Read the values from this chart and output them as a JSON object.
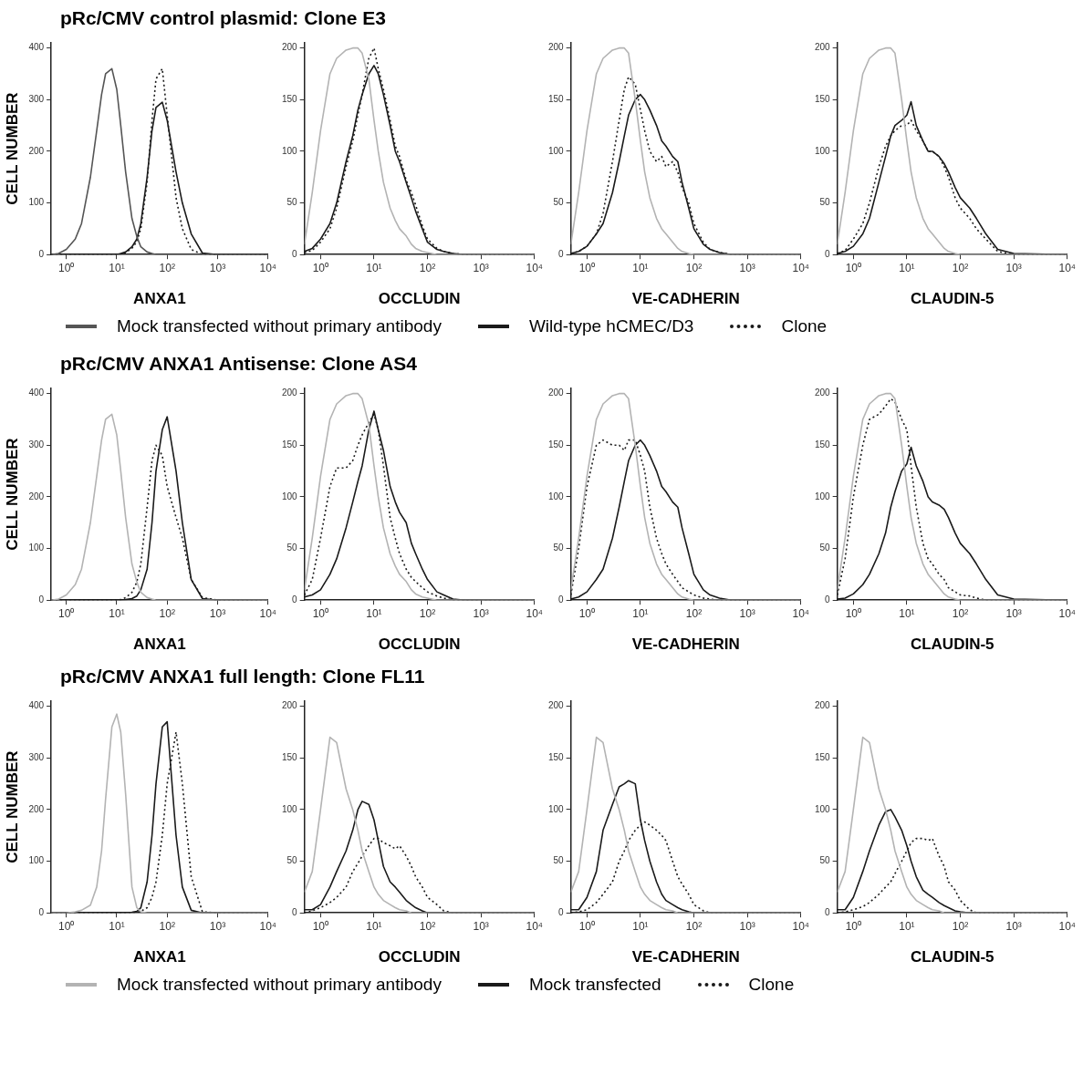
{
  "chart_data": [
    {
      "type": "line",
      "title": "pRc/CMV control plasmid: Clone E3",
      "xlabel": "ANXA1",
      "ylabel": "CELL NUMBER",
      "log": "x",
      "grid": false,
      "marker": "none",
      "legend": "bottom",
      "xlim": [
        0.5,
        10000
      ],
      "ylim": [
        0,
        410
      ],
      "yticks": [
        0,
        100,
        200,
        300,
        400
      ],
      "xticks": [
        {
          "value": 1,
          "label": "10⁰"
        },
        {
          "value": 10,
          "label": "10¹"
        },
        {
          "value": 100,
          "label": "10²"
        },
        {
          "value": 1000,
          "label": "10³"
        },
        {
          "value": 10000,
          "label": "10⁴"
        }
      ],
      "x": [
        0.5,
        0.7,
        1,
        1.5,
        2,
        3,
        4,
        5,
        6,
        8,
        10,
        12,
        15,
        20,
        25,
        30,
        40,
        50,
        60,
        80,
        100,
        150,
        200,
        300,
        500,
        1000,
        10000
      ],
      "series": [
        {
          "name": "Mock transfected without primary antibody",
          "color": "#555555",
          "line_style": "solid",
          "values": [
            0,
            2,
            10,
            30,
            60,
            150,
            240,
            310,
            350,
            360,
            320,
            250,
            160,
            70,
            35,
            15,
            5,
            2,
            0,
            0,
            0,
            0,
            0,
            0,
            0,
            0,
            0
          ]
        },
        {
          "name": "Wild-type hCMEC/D3",
          "color": "#1a1a1a",
          "line_style": "solid",
          "values": [
            0,
            0,
            0,
            0,
            0,
            0,
            0,
            0,
            0,
            0,
            0,
            2,
            5,
            15,
            30,
            60,
            150,
            240,
            285,
            295,
            260,
            160,
            100,
            40,
            3,
            0,
            0
          ]
        },
        {
          "name": "Clone",
          "color": "#1a1a1a",
          "line_style": "dotted",
          "values": [
            0,
            0,
            0,
            0,
            0,
            0,
            0,
            0,
            0,
            0,
            0,
            1,
            4,
            12,
            25,
            50,
            140,
            260,
            340,
            360,
            270,
            110,
            50,
            10,
            0,
            0,
            0
          ]
        }
      ]
    },
    {
      "type": "line",
      "xlabel": "OCCLUDIN",
      "log": "x",
      "grid": false,
      "marker": "none",
      "xlim": [
        0.5,
        10000
      ],
      "ylim": [
        0,
        205
      ],
      "yticks": [
        0,
        50,
        100,
        150,
        200
      ],
      "xticks": [
        {
          "value": 1,
          "label": "10⁰"
        },
        {
          "value": 10,
          "label": "10¹"
        },
        {
          "value": 100,
          "label": "10²"
        },
        {
          "value": 1000,
          "label": "10³"
        },
        {
          "value": 10000,
          "label": "10⁴"
        }
      ],
      "x": [
        0.5,
        0.7,
        1,
        1.5,
        2,
        3,
        4,
        5,
        6,
        8,
        10,
        12,
        15,
        20,
        25,
        30,
        40,
        50,
        60,
        80,
        100,
        150,
        200,
        300,
        500,
        1000,
        10000
      ],
      "series": [
        {
          "color": "#b3b3b3",
          "line_style": "solid",
          "values": [
            10,
            60,
            120,
            175,
            190,
            198,
            200,
            200,
            195,
            170,
            130,
            100,
            70,
            45,
            33,
            25,
            18,
            10,
            6,
            3,
            2,
            0,
            0,
            0,
            0,
            0,
            0
          ]
        },
        {
          "color": "#1a1a1a",
          "line_style": "solid",
          "values": [
            3,
            6,
            15,
            30,
            50,
            90,
            115,
            140,
            155,
            175,
            183,
            175,
            155,
            125,
            100,
            90,
            70,
            55,
            42,
            25,
            12,
            5,
            3,
            1,
            0,
            0,
            0
          ]
        },
        {
          "color": "#1a1a1a",
          "line_style": "dotted",
          "values": [
            2,
            4,
            12,
            25,
            45,
            85,
            110,
            135,
            155,
            190,
            200,
            180,
            160,
            130,
            105,
            95,
            72,
            60,
            48,
            28,
            15,
            6,
            3,
            1,
            0,
            0,
            0
          ]
        }
      ]
    },
    {
      "type": "line",
      "xlabel": "VE-CADHERIN",
      "log": "x",
      "grid": false,
      "marker": "none",
      "xlim": [
        0.5,
        10000
      ],
      "ylim": [
        0,
        205
      ],
      "yticks": [
        0,
        50,
        100,
        150,
        200
      ],
      "xticks": [
        {
          "value": 1,
          "label": "10⁰"
        },
        {
          "value": 10,
          "label": "10¹"
        },
        {
          "value": 100,
          "label": "10²"
        },
        {
          "value": 1000,
          "label": "10³"
        },
        {
          "value": 10000,
          "label": "10⁴"
        }
      ],
      "x": [
        0.5,
        0.7,
        1,
        1.5,
        2,
        3,
        4,
        5,
        6,
        8,
        10,
        12,
        15,
        20,
        25,
        30,
        40,
        50,
        60,
        80,
        100,
        150,
        200,
        300,
        500,
        1000,
        10000
      ],
      "series": [
        {
          "color": "#b3b3b3",
          "line_style": "solid",
          "values": [
            10,
            60,
            120,
            175,
            190,
            198,
            200,
            200,
            195,
            150,
            110,
            80,
            55,
            35,
            25,
            20,
            12,
            6,
            3,
            1,
            0,
            0,
            0,
            0,
            0,
            0,
            0
          ]
        },
        {
          "color": "#1a1a1a",
          "line_style": "solid",
          "values": [
            1,
            3,
            8,
            20,
            30,
            60,
            90,
            115,
            135,
            150,
            155,
            150,
            140,
            125,
            110,
            105,
            95,
            90,
            70,
            45,
            25,
            10,
            5,
            2,
            0,
            0,
            0
          ]
        },
        {
          "color": "#1a1a1a",
          "line_style": "dotted",
          "values": [
            1,
            3,
            8,
            20,
            40,
            90,
            130,
            160,
            172,
            165,
            140,
            120,
            100,
            90,
            95,
            85,
            90,
            80,
            65,
            50,
            30,
            12,
            5,
            2,
            0,
            0,
            0
          ]
        }
      ]
    },
    {
      "type": "line",
      "xlabel": "CLAUDIN-5",
      "log": "x",
      "grid": false,
      "marker": "none",
      "xlim": [
        0.5,
        10000
      ],
      "ylim": [
        0,
        205
      ],
      "yticks": [
        0,
        50,
        100,
        150,
        200
      ],
      "xticks": [
        {
          "value": 1,
          "label": "10⁰"
        },
        {
          "value": 10,
          "label": "10¹"
        },
        {
          "value": 100,
          "label": "10²"
        },
        {
          "value": 1000,
          "label": "10³"
        },
        {
          "value": 10000,
          "label": "10⁴"
        }
      ],
      "x": [
        0.5,
        0.7,
        1,
        1.5,
        2,
        3,
        4,
        5,
        6,
        8,
        10,
        12,
        15,
        20,
        25,
        30,
        40,
        50,
        60,
        80,
        100,
        150,
        200,
        300,
        500,
        1000,
        10000
      ],
      "series": [
        {
          "color": "#b3b3b3",
          "line_style": "solid",
          "values": [
            10,
            60,
            120,
            175,
            190,
            198,
            200,
            200,
            195,
            150,
            110,
            80,
            55,
            35,
            25,
            20,
            12,
            6,
            3,
            1,
            0,
            0,
            0,
            0,
            0,
            0,
            0
          ]
        },
        {
          "color": "#1a1a1a",
          "line_style": "solid",
          "values": [
            1,
            3,
            8,
            20,
            35,
            70,
            95,
            115,
            125,
            130,
            135,
            148,
            125,
            110,
            100,
            100,
            95,
            88,
            80,
            65,
            55,
            45,
            35,
            20,
            5,
            1,
            0
          ]
        },
        {
          "color": "#1a1a1a",
          "line_style": "dotted",
          "values": [
            1,
            4,
            15,
            30,
            50,
            85,
            105,
            115,
            120,
            125,
            125,
            130,
            120,
            110,
            100,
            100,
            95,
            85,
            75,
            55,
            45,
            35,
            25,
            15,
            3,
            0,
            0
          ]
        }
      ]
    },
    {
      "type": "line",
      "title": "pRc/CMV ANXA1 Antisense: Clone AS4",
      "xlabel": "ANXA1",
      "ylabel": "CELL NUMBER",
      "log": "x",
      "grid": false,
      "marker": "none",
      "xlim": [
        0.5,
        10000
      ],
      "ylim": [
        0,
        410
      ],
      "yticks": [
        0,
        100,
        200,
        300,
        400
      ],
      "xticks": [
        {
          "value": 1,
          "label": "10⁰"
        },
        {
          "value": 10,
          "label": "10¹"
        },
        {
          "value": 100,
          "label": "10²"
        },
        {
          "value": 1000,
          "label": "10³"
        },
        {
          "value": 10000,
          "label": "10⁴"
        }
      ],
      "x": [
        0.5,
        0.7,
        1,
        1.5,
        2,
        3,
        4,
        5,
        6,
        8,
        10,
        12,
        15,
        20,
        25,
        30,
        40,
        50,
        60,
        80,
        100,
        150,
        200,
        300,
        500,
        1000,
        10000
      ],
      "series": [
        {
          "color": "#b3b3b3",
          "line_style": "solid",
          "values": [
            0,
            2,
            10,
            30,
            60,
            150,
            240,
            310,
            350,
            360,
            320,
            250,
            160,
            70,
            35,
            15,
            5,
            2,
            0,
            0,
            0,
            0,
            0,
            0,
            0,
            0,
            0
          ]
        },
        {
          "color": "#1a1a1a",
          "line_style": "solid",
          "values": [
            0,
            0,
            0,
            0,
            0,
            0,
            0,
            0,
            0,
            0,
            0,
            0,
            1,
            3,
            8,
            20,
            60,
            150,
            250,
            330,
            355,
            250,
            150,
            40,
            3,
            0,
            0
          ]
        },
        {
          "color": "#1a1a1a",
          "line_style": "dotted",
          "values": [
            0,
            0,
            0,
            0,
            0,
            0,
            0,
            0,
            0,
            0,
            0,
            1,
            5,
            15,
            35,
            70,
            180,
            270,
            300,
            280,
            220,
            160,
            120,
            40,
            5,
            0,
            0
          ]
        }
      ]
    },
    {
      "type": "line",
      "xlabel": "OCCLUDIN",
      "log": "x",
      "grid": false,
      "marker": "none",
      "xlim": [
        0.5,
        10000
      ],
      "ylim": [
        0,
        205
      ],
      "yticks": [
        0,
        50,
        100,
        150,
        200
      ],
      "xticks": [
        {
          "value": 1,
          "label": "10⁰"
        },
        {
          "value": 10,
          "label": "10¹"
        },
        {
          "value": 100,
          "label": "10²"
        },
        {
          "value": 1000,
          "label": "10³"
        },
        {
          "value": 10000,
          "label": "10⁴"
        }
      ],
      "x": [
        0.5,
        0.7,
        1,
        1.5,
        2,
        3,
        4,
        5,
        6,
        8,
        10,
        12,
        15,
        20,
        25,
        30,
        40,
        50,
        60,
        80,
        100,
        150,
        200,
        300,
        500,
        1000,
        10000
      ],
      "series": [
        {
          "color": "#b3b3b3",
          "line_style": "solid",
          "values": [
            10,
            60,
            120,
            175,
            190,
            198,
            200,
            200,
            195,
            170,
            130,
            100,
            70,
            45,
            33,
            25,
            18,
            10,
            6,
            3,
            2,
            0,
            0,
            0,
            0,
            0,
            0
          ]
        },
        {
          "color": "#1a1a1a",
          "line_style": "solid",
          "values": [
            3,
            5,
            10,
            25,
            40,
            70,
            95,
            115,
            130,
            165,
            183,
            165,
            145,
            110,
            95,
            85,
            75,
            55,
            45,
            30,
            20,
            8,
            5,
            1,
            0,
            0,
            0
          ]
        },
        {
          "color": "#1a1a1a",
          "line_style": "dotted",
          "values": [
            5,
            20,
            60,
            110,
            128,
            128,
            135,
            150,
            160,
            172,
            180,
            165,
            130,
            80,
            60,
            45,
            30,
            22,
            18,
            12,
            8,
            4,
            2,
            0,
            0,
            0,
            0
          ]
        }
      ]
    },
    {
      "type": "line",
      "xlabel": "VE-CADHERIN",
      "log": "x",
      "grid": false,
      "marker": "none",
      "xlim": [
        0.5,
        10000
      ],
      "ylim": [
        0,
        205
      ],
      "yticks": [
        0,
        50,
        100,
        150,
        200
      ],
      "xticks": [
        {
          "value": 1,
          "label": "10⁰"
        },
        {
          "value": 10,
          "label": "10¹"
        },
        {
          "value": 100,
          "label": "10²"
        },
        {
          "value": 1000,
          "label": "10³"
        },
        {
          "value": 10000,
          "label": "10⁴"
        }
      ],
      "x": [
        0.5,
        0.7,
        1,
        1.5,
        2,
        3,
        4,
        5,
        6,
        8,
        10,
        12,
        15,
        20,
        25,
        30,
        40,
        50,
        60,
        80,
        100,
        150,
        200,
        300,
        500,
        1000,
        10000
      ],
      "series": [
        {
          "color": "#b3b3b3",
          "line_style": "solid",
          "values": [
            10,
            60,
            120,
            175,
            190,
            198,
            200,
            200,
            195,
            150,
            110,
            80,
            55,
            35,
            25,
            20,
            12,
            6,
            3,
            1,
            0,
            0,
            0,
            0,
            0,
            0,
            0
          ]
        },
        {
          "color": "#1a1a1a",
          "line_style": "solid",
          "values": [
            1,
            3,
            8,
            20,
            30,
            60,
            90,
            115,
            135,
            150,
            155,
            150,
            140,
            125,
            110,
            105,
            95,
            90,
            70,
            45,
            25,
            10,
            5,
            2,
            0,
            0,
            0
          ]
        },
        {
          "color": "#1a1a1a",
          "line_style": "dotted",
          "values": [
            5,
            50,
            110,
            150,
            155,
            150,
            150,
            145,
            155,
            155,
            140,
            125,
            90,
            60,
            45,
            35,
            25,
            18,
            12,
            8,
            5,
            2,
            1,
            0,
            0,
            0,
            0
          ]
        }
      ]
    },
    {
      "type": "line",
      "xlabel": "CLAUDIN-5",
      "log": "x",
      "grid": false,
      "marker": "none",
      "xlim": [
        0.5,
        10000
      ],
      "ylim": [
        0,
        205
      ],
      "yticks": [
        0,
        50,
        100,
        150,
        200
      ],
      "xticks": [
        {
          "value": 1,
          "label": "10⁰"
        },
        {
          "value": 10,
          "label": "10¹"
        },
        {
          "value": 100,
          "label": "10²"
        },
        {
          "value": 1000,
          "label": "10³"
        },
        {
          "value": 10000,
          "label": "10⁴"
        }
      ],
      "x": [
        0.5,
        0.7,
        1,
        1.5,
        2,
        3,
        4,
        5,
        6,
        8,
        10,
        12,
        15,
        20,
        25,
        30,
        40,
        50,
        60,
        80,
        100,
        150,
        200,
        300,
        500,
        1000,
        10000
      ],
      "series": [
        {
          "color": "#b3b3b3",
          "line_style": "solid",
          "values": [
            10,
            60,
            120,
            175,
            190,
            198,
            200,
            200,
            195,
            150,
            110,
            80,
            55,
            35,
            25,
            20,
            12,
            6,
            3,
            1,
            0,
            0,
            0,
            0,
            0,
            0,
            0
          ]
        },
        {
          "color": "#1a1a1a",
          "line_style": "solid",
          "values": [
            1,
            2,
            6,
            15,
            25,
            45,
            65,
            90,
            105,
            125,
            132,
            148,
            130,
            115,
            100,
            95,
            92,
            88,
            80,
            65,
            55,
            45,
            35,
            20,
            5,
            1,
            0
          ]
        },
        {
          "color": "#1a1a1a",
          "line_style": "dotted",
          "values": [
            5,
            40,
            100,
            150,
            175,
            180,
            188,
            195,
            192,
            175,
            165,
            130,
            90,
            55,
            40,
            35,
            25,
            20,
            12,
            8,
            5,
            4,
            2,
            0,
            0,
            0,
            0
          ]
        }
      ]
    },
    {
      "type": "line",
      "title": "pRc/CMV ANXA1 full length: Clone FL11",
      "xlabel": "ANXA1",
      "ylabel": "CELL NUMBER",
      "log": "x",
      "grid": false,
      "marker": "none",
      "legend": "bottom",
      "xlim": [
        0.5,
        10000
      ],
      "ylim": [
        0,
        410
      ],
      "yticks": [
        0,
        100,
        200,
        300,
        400
      ],
      "xticks": [
        {
          "value": 1,
          "label": "10⁰"
        },
        {
          "value": 10,
          "label": "10¹"
        },
        {
          "value": 100,
          "label": "10²"
        },
        {
          "value": 1000,
          "label": "10³"
        },
        {
          "value": 10000,
          "label": "10⁴"
        }
      ],
      "x": [
        0.5,
        0.7,
        1,
        1.5,
        2,
        3,
        4,
        5,
        6,
        8,
        10,
        12,
        15,
        20,
        25,
        30,
        40,
        50,
        60,
        80,
        100,
        150,
        200,
        300,
        500,
        1000,
        10000
      ],
      "series": [
        {
          "name": "Mock transfected without primary antibody",
          "color": "#b3b3b3",
          "line_style": "solid",
          "values": [
            0,
            0,
            0,
            2,
            5,
            15,
            50,
            120,
            220,
            360,
            385,
            350,
            230,
            50,
            10,
            2,
            0,
            0,
            0,
            0,
            0,
            0,
            0,
            0,
            0,
            0,
            0
          ]
        },
        {
          "name": "Mock transfected",
          "color": "#1a1a1a",
          "line_style": "solid",
          "values": [
            0,
            0,
            0,
            0,
            0,
            0,
            0,
            0,
            0,
            0,
            0,
            0,
            0,
            1,
            3,
            10,
            60,
            150,
            250,
            360,
            370,
            150,
            50,
            5,
            0,
            0,
            0
          ]
        },
        {
          "name": "Clone",
          "color": "#1a1a1a",
          "line_style": "dotted",
          "values": [
            0,
            0,
            0,
            0,
            0,
            0,
            0,
            0,
            0,
            0,
            0,
            0,
            0,
            0,
            1,
            3,
            10,
            30,
            60,
            150,
            250,
            350,
            250,
            70,
            2,
            0,
            0
          ]
        }
      ]
    },
    {
      "type": "line",
      "xlabel": "OCCLUDIN",
      "log": "x",
      "grid": false,
      "marker": "none",
      "xlim": [
        0.5,
        10000
      ],
      "ylim": [
        0,
        205
      ],
      "yticks": [
        0,
        50,
        100,
        150,
        200
      ],
      "xticks": [
        {
          "value": 1,
          "label": "10⁰"
        },
        {
          "value": 10,
          "label": "10¹"
        },
        {
          "value": 100,
          "label": "10²"
        },
        {
          "value": 1000,
          "label": "10³"
        },
        {
          "value": 10000,
          "label": "10⁴"
        }
      ],
      "x": [
        0.5,
        0.7,
        1,
        1.5,
        2,
        3,
        4,
        5,
        6,
        8,
        10,
        12,
        15,
        20,
        25,
        30,
        40,
        50,
        60,
        80,
        100,
        150,
        200,
        300,
        500,
        1000,
        10000
      ],
      "series": [
        {
          "color": "#b3b3b3",
          "line_style": "solid",
          "values": [
            20,
            40,
            100,
            170,
            165,
            120,
            100,
            80,
            60,
            40,
            25,
            18,
            12,
            8,
            5,
            3,
            2,
            0,
            0,
            0,
            0,
            0,
            0,
            0,
            0,
            0,
            0
          ]
        },
        {
          "color": "#1a1a1a",
          "line_style": "solid",
          "values": [
            3,
            3,
            8,
            25,
            40,
            60,
            80,
            100,
            108,
            105,
            90,
            70,
            45,
            30,
            25,
            20,
            12,
            8,
            5,
            2,
            0,
            0,
            0,
            0,
            0,
            0,
            0
          ]
        },
        {
          "color": "#1a1a1a",
          "line_style": "dotted",
          "values": [
            0,
            2,
            5,
            10,
            15,
            25,
            40,
            48,
            55,
            65,
            72,
            72,
            68,
            65,
            62,
            65,
            55,
            45,
            35,
            25,
            15,
            8,
            2,
            0,
            0,
            0,
            0
          ]
        }
      ]
    },
    {
      "type": "line",
      "xlabel": "VE-CADHERIN",
      "log": "x",
      "grid": false,
      "marker": "none",
      "xlim": [
        0.5,
        10000
      ],
      "ylim": [
        0,
        205
      ],
      "yticks": [
        0,
        50,
        100,
        150,
        200
      ],
      "xticks": [
        {
          "value": 1,
          "label": "10⁰"
        },
        {
          "value": 10,
          "label": "10¹"
        },
        {
          "value": 100,
          "label": "10²"
        },
        {
          "value": 1000,
          "label": "10³"
        },
        {
          "value": 10000,
          "label": "10⁴"
        }
      ],
      "x": [
        0.5,
        0.7,
        1,
        1.5,
        2,
        3,
        4,
        5,
        6,
        8,
        10,
        12,
        15,
        20,
        25,
        30,
        40,
        50,
        60,
        80,
        100,
        150,
        200,
        300,
        500,
        1000,
        10000
      ],
      "series": [
        {
          "color": "#b3b3b3",
          "line_style": "solid",
          "values": [
            20,
            40,
            100,
            170,
            165,
            120,
            100,
            80,
            60,
            40,
            25,
            18,
            12,
            8,
            5,
            3,
            2,
            0,
            0,
            0,
            0,
            0,
            0,
            0,
            0,
            0,
            0
          ]
        },
        {
          "color": "#1a1a1a",
          "line_style": "solid",
          "values": [
            3,
            3,
            15,
            40,
            80,
            105,
            122,
            125,
            128,
            125,
            90,
            70,
            50,
            30,
            18,
            12,
            8,
            5,
            3,
            1,
            0,
            0,
            0,
            0,
            0,
            0,
            0
          ]
        },
        {
          "color": "#1a1a1a",
          "line_style": "dotted",
          "values": [
            0,
            1,
            3,
            10,
            18,
            30,
            50,
            60,
            70,
            80,
            85,
            88,
            85,
            80,
            75,
            70,
            50,
            35,
            28,
            18,
            8,
            2,
            0,
            0,
            0,
            0,
            0
          ]
        }
      ]
    },
    {
      "type": "line",
      "xlabel": "CLAUDIN-5",
      "log": "x",
      "grid": false,
      "marker": "none",
      "xlim": [
        0.5,
        10000
      ],
      "ylim": [
        0,
        205
      ],
      "yticks": [
        0,
        50,
        100,
        150,
        200
      ],
      "xticks": [
        {
          "value": 1,
          "label": "10⁰"
        },
        {
          "value": 10,
          "label": "10¹"
        },
        {
          "value": 100,
          "label": "10²"
        },
        {
          "value": 1000,
          "label": "10³"
        },
        {
          "value": 10000,
          "label": "10⁴"
        }
      ],
      "x": [
        0.5,
        0.7,
        1,
        1.5,
        2,
        3,
        4,
        5,
        6,
        8,
        10,
        12,
        15,
        20,
        25,
        30,
        40,
        50,
        60,
        80,
        100,
        150,
        200,
        300,
        500,
        1000,
        10000
      ],
      "series": [
        {
          "color": "#b3b3b3",
          "line_style": "solid",
          "values": [
            20,
            40,
            100,
            170,
            165,
            120,
            100,
            80,
            60,
            40,
            25,
            18,
            12,
            8,
            5,
            3,
            2,
            0,
            0,
            0,
            0,
            0,
            0,
            0,
            0,
            0,
            0
          ]
        },
        {
          "color": "#1a1a1a",
          "line_style": "solid",
          "values": [
            3,
            3,
            15,
            40,
            60,
            85,
            98,
            100,
            93,
            80,
            65,
            50,
            35,
            22,
            18,
            15,
            10,
            7,
            5,
            2,
            1,
            0,
            0,
            0,
            0,
            0,
            0
          ]
        },
        {
          "color": "#1a1a1a",
          "line_style": "dotted",
          "values": [
            0,
            1,
            3,
            6,
            10,
            18,
            25,
            30,
            38,
            50,
            60,
            68,
            72,
            72,
            70,
            72,
            55,
            45,
            30,
            22,
            12,
            3,
            0,
            0,
            0,
            0,
            0
          ]
        }
      ]
    }
  ]
}
